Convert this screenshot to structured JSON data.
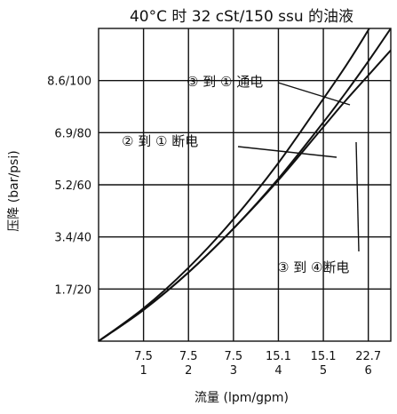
{
  "chart_data": {
    "type": "line",
    "title": "40°C 时 32 cSt/150 ssu 的油液",
    "xlabel": "流量 (lpm/gpm)",
    "ylabel": "压降 (bar/psi)",
    "x_tick_labels": [
      {
        "top": "7.5",
        "bottom": "1"
      },
      {
        "top": "7.5",
        "bottom": "2"
      },
      {
        "top": "7.5",
        "bottom": "3"
      },
      {
        "top": "15.1",
        "bottom": "4"
      },
      {
        "top": "15.1",
        "bottom": "5"
      },
      {
        "top": "22.7",
        "bottom": "6"
      }
    ],
    "y_tick_labels": [
      "1.7/20",
      "3.4/40",
      "5.2/60",
      "6.9/80",
      "8.6/100"
    ],
    "xlim": [
      0,
      6.5
    ],
    "ylim": [
      0,
      10
    ],
    "grid": true,
    "series": [
      {
        "name": "③ 到 ① 通电",
        "x": [
          0,
          1,
          2,
          3,
          4,
          5,
          5.5,
          6,
          6.5
        ],
        "y": [
          0,
          1.05,
          2.35,
          3.9,
          5.7,
          7.75,
          8.8,
          9.95,
          11.2
        ]
      },
      {
        "name": "② 到 ① 断电",
        "x": [
          0,
          1,
          2,
          3,
          4,
          5,
          5.5,
          6,
          6.5
        ],
        "y": [
          0,
          1.0,
          2.2,
          3.6,
          5.2,
          7.0,
          7.95,
          8.95,
          10.0
        ]
      },
      {
        "name": "③ 到 ④断电",
        "x": [
          0,
          1,
          2,
          3,
          4,
          5,
          5.5,
          6,
          6.5
        ],
        "y": [
          0,
          1.0,
          2.2,
          3.6,
          5.15,
          6.85,
          7.7,
          8.5,
          9.3
        ]
      }
    ],
    "annotations": [
      {
        "text": "③ 到 ① 通电",
        "series": 0
      },
      {
        "text": "② 到 ① 断电",
        "series": 1
      },
      {
        "text": "③ 到 ④断电",
        "series": 2
      }
    ]
  },
  "colors": {
    "line": "#111111",
    "grid": "#111111",
    "background": "#ffffff"
  }
}
